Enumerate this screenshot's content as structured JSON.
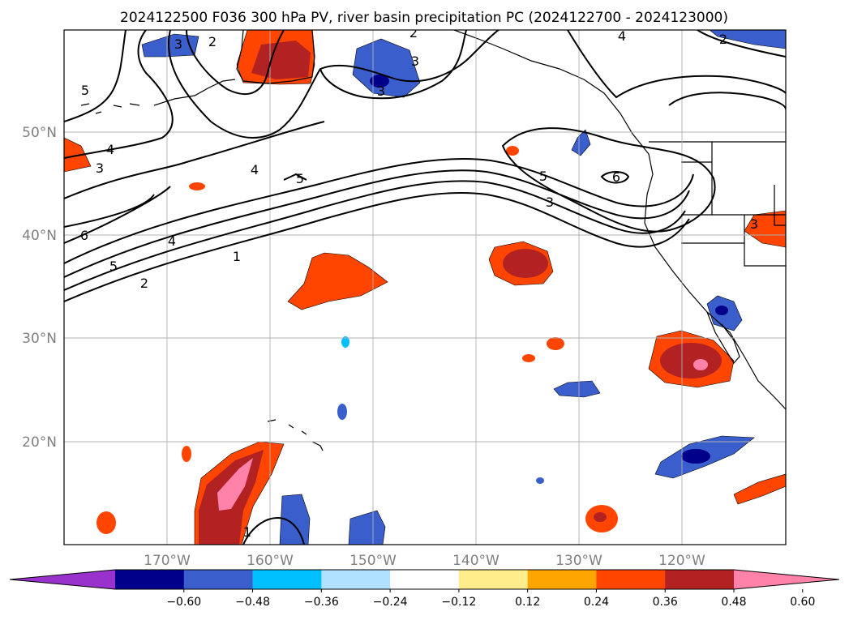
{
  "title": "2024122500 F036 300 hPa PV, river basin precipitation PC (2024122700 - 2024123000)",
  "map": {
    "lon_ticks": [
      {
        "value": -170,
        "label": "170°W"
      },
      {
        "value": -160,
        "label": "160°W"
      },
      {
        "value": -150,
        "label": "150°W"
      },
      {
        "value": -140,
        "label": "140°W"
      },
      {
        "value": -130,
        "label": "130°W"
      },
      {
        "value": -120,
        "label": "120°W"
      }
    ],
    "lat_ticks": [
      {
        "value": 50,
        "label": "50°N"
      },
      {
        "value": 40,
        "label": "40°N"
      },
      {
        "value": 30,
        "label": "30°N"
      },
      {
        "value": 20,
        "label": "20°N"
      }
    ],
    "grid": true,
    "contour_labels": [
      "5",
      "4",
      "3",
      "6",
      "5",
      "4",
      "2",
      "1",
      "2",
      "3",
      "4",
      "3",
      "5",
      "3",
      "2",
      "4",
      "5",
      "3",
      "6",
      "2",
      "3",
      "1"
    ]
  },
  "colorbar": {
    "colors": [
      "#9932cc",
      "#00008b",
      "#3a5fcd",
      "#00bfff",
      "#b0e2ff",
      "#ffffff",
      "#ffec8b",
      "#ffa500",
      "#ff4500",
      "#b22222",
      "#ff82ab"
    ],
    "tick_labels": [
      "−0.60",
      "−0.48",
      "−0.36",
      "−0.24",
      "−0.12",
      "0.12",
      "0.24",
      "0.36",
      "0.48",
      "0.60"
    ]
  }
}
